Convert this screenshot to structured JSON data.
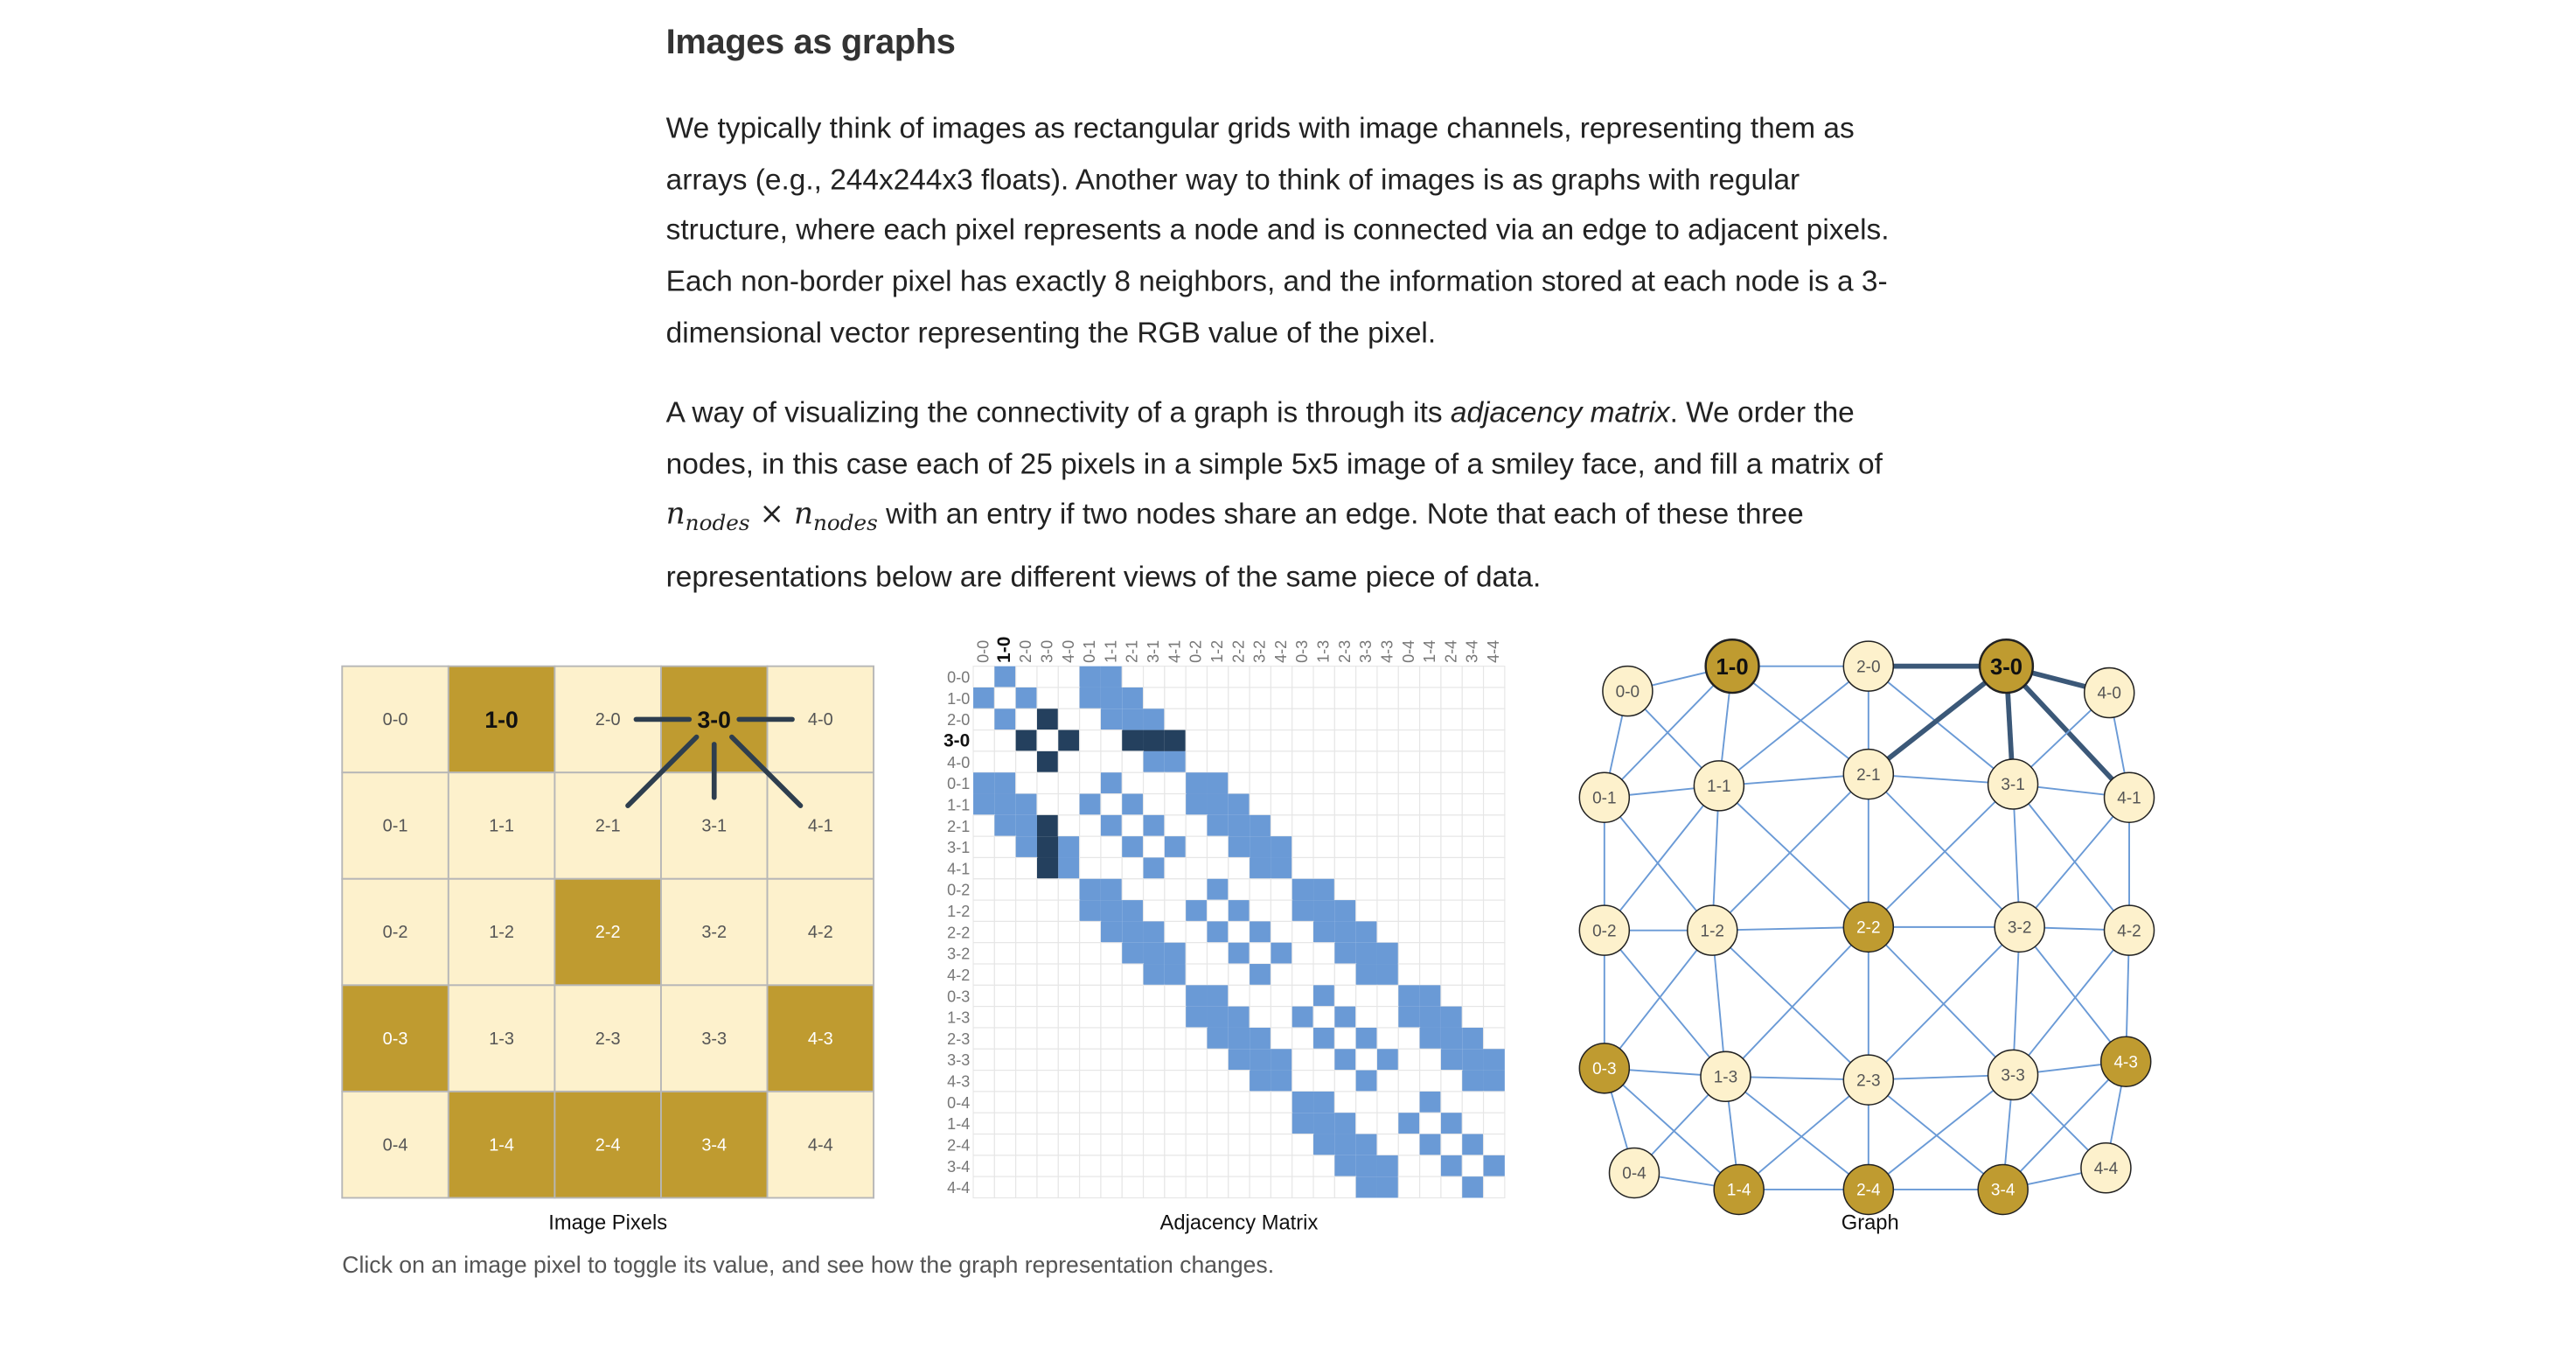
{
  "heading": "Images as graphs",
  "paragraph1": "We typically think of images as rectangular grids with image channels, representing them as arrays (e.g., 244x244x3 floats). Another way to think of images is as graphs with regular structure, where each pixel represents a node and is connected via an edge to adjacent pixels. Each non-border pixel has exactly 8 neighbors, and the information stored at each node is a 3-dimensional vector representing the RGB value of the pixel.",
  "paragraph2": {
    "part1": "A way of visualizing the connectivity of a graph is through its ",
    "em": "adjacency matrix",
    "part2": ". We order the nodes, in this case each of 25 pixels in a simple 5x5 image of a smiley face, and fill a matrix of ",
    "math_n": "n",
    "math_sub": "nodes",
    "math_times": " × ",
    "part3": " with an entry if two nodes share an edge. Note that each of these three representations below are different views of the same piece of data."
  },
  "captions": {
    "pixels": "Image Pixels",
    "matrix": "Adjacency Matrix",
    "graph": "Graph"
  },
  "note": "Click on an image pixel to toggle its value, and see how the graph representation changes.",
  "selected_node": "3-0",
  "emphasized_node": "1-0",
  "pixels": {
    "grid_size": 5,
    "on": [
      "1-0",
      "3-0",
      "2-2",
      "0-3",
      "4-3",
      "1-4",
      "2-4",
      "3-4"
    ]
  },
  "colors": {
    "pixel_on": "#bf9b30",
    "pixel_off": "#fdf1cc",
    "matrix_cell": "#6a9ad6",
    "matrix_highlight": "#24405e",
    "graph_edge": "#6a9ad6",
    "graph_highlight_edge": "#3b5878"
  }
}
